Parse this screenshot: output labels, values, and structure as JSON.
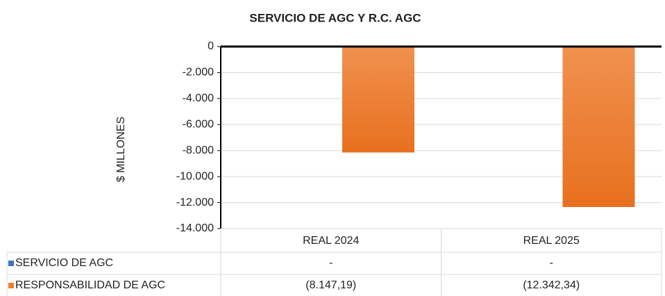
{
  "chart_data": {
    "type": "bar",
    "title": "SERVICIO DE AGC Y R.C. AGC",
    "y_label": "$ MILLONES",
    "categories": [
      "REAL 2024",
      "REAL 2025"
    ],
    "series": [
      {
        "name": "SERVICIO DE AGC",
        "color": "#4472c4",
        "values": [
          0,
          0
        ],
        "value_labels": [
          "-",
          "-"
        ]
      },
      {
        "name": "RESPONSABILIDAD DE AGC",
        "color": "#ed7d31",
        "values": [
          -8147.19,
          -12342.34
        ],
        "value_labels": [
          "(8.147,19)",
          "(12.342,34)"
        ]
      }
    ],
    "ylim": [
      -14000,
      0
    ],
    "yticks": [
      0,
      {
        "value": -2000,
        "label": "-2.000"
      },
      {
        "value": -4000,
        "label": "-4.000"
      },
      {
        "value": -6000,
        "label": "-6.000"
      },
      {
        "value": -8000,
        "label": "-8.000"
      },
      {
        "value": -10000,
        "label": "-10.000"
      },
      {
        "value": -12000,
        "label": "-12.000"
      },
      {
        "value": -14000,
        "label": "-14.000"
      }
    ],
    "grid": true
  }
}
